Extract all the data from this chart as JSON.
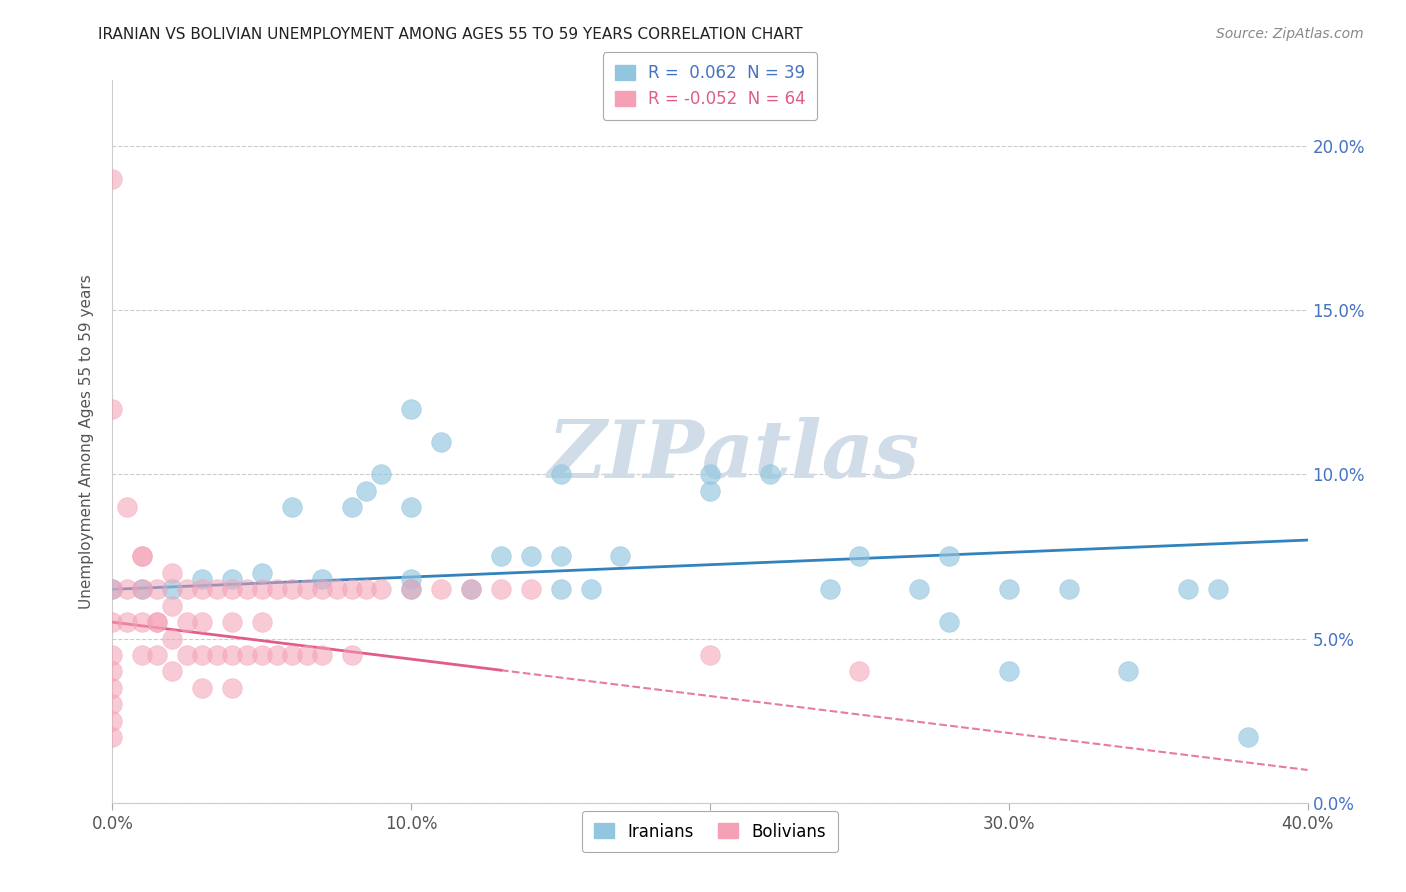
{
  "title": "IRANIAN VS BOLIVIAN UNEMPLOYMENT AMONG AGES 55 TO 59 YEARS CORRELATION CHART",
  "source": "Source: ZipAtlas.com",
  "ylabel": "Unemployment Among Ages 55 to 59 years",
  "xlim": [
    0.0,
    0.4
  ],
  "ylim": [
    0.0,
    0.22
  ],
  "xticks": [
    0.0,
    0.1,
    0.2,
    0.3,
    0.4
  ],
  "yticks": [
    0.0,
    0.05,
    0.1,
    0.15,
    0.2
  ],
  "xticklabels": [
    "0.0%",
    "10.0%",
    "20.0%",
    "30.0%",
    "40.0%"
  ],
  "yticklabels_right": [
    "0.0%",
    "5.0%",
    "10.0%",
    "15.0%",
    "20.0%"
  ],
  "iranians_color": "#92c5de",
  "bolivians_color": "#f4a0b5",
  "iranians_R": "0.062",
  "iranians_N": "39",
  "bolivians_R": "-0.052",
  "bolivians_N": "64",
  "trendline_iranian_color": "#3182bd",
  "trendline_bolivian_color": "#e05c8a",
  "watermark": "ZIPatlas",
  "iran_trendline_x0": 0.0,
  "iran_trendline_y0": 0.065,
  "iran_trendline_x1": 0.4,
  "iran_trendline_y1": 0.08,
  "boliv_trendline_x0": 0.0,
  "boliv_trendline_y0": 0.055,
  "boliv_trendline_x1": 0.4,
  "boliv_trendline_y1": 0.01,
  "iranians_x": [
    0.0,
    0.01,
    0.02,
    0.03,
    0.04,
    0.05,
    0.06,
    0.07,
    0.08,
    0.085,
    0.09,
    0.1,
    0.1,
    0.1,
    0.11,
    0.12,
    0.13,
    0.14,
    0.15,
    0.15,
    0.16,
    0.17,
    0.2,
    0.22,
    0.24,
    0.25,
    0.27,
    0.28,
    0.28,
    0.3,
    0.3,
    0.32,
    0.34,
    0.36,
    0.37,
    0.38,
    0.2,
    0.15,
    0.1
  ],
  "iranians_y": [
    0.065,
    0.065,
    0.065,
    0.068,
    0.068,
    0.07,
    0.09,
    0.068,
    0.09,
    0.095,
    0.1,
    0.068,
    0.12,
    0.09,
    0.11,
    0.065,
    0.075,
    0.075,
    0.1,
    0.075,
    0.065,
    0.075,
    0.095,
    0.1,
    0.065,
    0.075,
    0.065,
    0.055,
    0.075,
    0.04,
    0.065,
    0.065,
    0.04,
    0.065,
    0.065,
    0.02,
    0.1,
    0.065,
    0.065
  ],
  "bolivians_x": [
    0.0,
    0.0,
    0.0,
    0.0,
    0.0,
    0.0,
    0.0,
    0.0,
    0.0,
    0.005,
    0.005,
    0.01,
    0.01,
    0.01,
    0.01,
    0.015,
    0.015,
    0.015,
    0.02,
    0.02,
    0.02,
    0.02,
    0.025,
    0.025,
    0.025,
    0.03,
    0.03,
    0.03,
    0.03,
    0.035,
    0.035,
    0.04,
    0.04,
    0.04,
    0.04,
    0.045,
    0.045,
    0.05,
    0.05,
    0.05,
    0.055,
    0.055,
    0.06,
    0.06,
    0.065,
    0.065,
    0.07,
    0.07,
    0.075,
    0.08,
    0.08,
    0.085,
    0.09,
    0.1,
    0.11,
    0.12,
    0.13,
    0.14,
    0.2,
    0.25,
    0.0,
    0.005,
    0.01,
    0.015
  ],
  "bolivians_y": [
    0.19,
    0.065,
    0.055,
    0.045,
    0.04,
    0.035,
    0.03,
    0.025,
    0.02,
    0.065,
    0.055,
    0.075,
    0.065,
    0.055,
    0.045,
    0.065,
    0.055,
    0.045,
    0.07,
    0.06,
    0.05,
    0.04,
    0.065,
    0.055,
    0.045,
    0.065,
    0.055,
    0.045,
    0.035,
    0.065,
    0.045,
    0.065,
    0.055,
    0.045,
    0.035,
    0.065,
    0.045,
    0.065,
    0.055,
    0.045,
    0.065,
    0.045,
    0.065,
    0.045,
    0.065,
    0.045,
    0.065,
    0.045,
    0.065,
    0.065,
    0.045,
    0.065,
    0.065,
    0.065,
    0.065,
    0.065,
    0.065,
    0.065,
    0.045,
    0.04,
    0.12,
    0.09,
    0.075,
    0.055
  ]
}
